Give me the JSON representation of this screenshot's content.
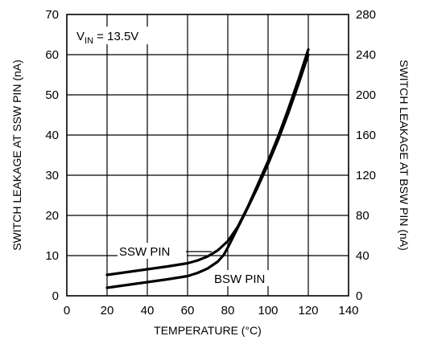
{
  "chart_data": {
    "type": "line",
    "xlabel": "TEMPERATURE (°C)",
    "ylabel_left": "SWITCH LEAKAGE AT SSW PIN (nA)",
    "ylabel_right": "SWITCH LEAKAGE AT BSW PIN (nA)",
    "xlim": [
      0,
      140
    ],
    "ylim_left": [
      0,
      70
    ],
    "ylim_right": [
      0,
      280
    ],
    "x_ticks": [
      "0",
      "20",
      "40",
      "60",
      "80",
      "100",
      "120",
      "140"
    ],
    "y_ticks_left": [
      "0",
      "10",
      "20",
      "30",
      "40",
      "50",
      "60",
      "70"
    ],
    "y_ticks_right": [
      "0",
      "40",
      "80",
      "120",
      "160",
      "200",
      "240",
      "280"
    ],
    "grid": true,
    "annotation": {
      "main": "V",
      "sub": "IN",
      "rest": " = 13.5V"
    },
    "series": [
      {
        "name": "SSW PIN",
        "axis": "left",
        "x": [
          20,
          30,
          40,
          50,
          60,
          65,
          70,
          75,
          80,
          85,
          90,
          95,
          100,
          105,
          110,
          115,
          120
        ],
        "y": [
          5.2,
          5.9,
          6.6,
          7.3,
          8.1,
          8.8,
          9.8,
          11.3,
          13.6,
          17.2,
          22.2,
          27.8,
          33.5,
          39.6,
          46.4,
          53.6,
          61.3
        ]
      },
      {
        "name": "BSW PIN",
        "axis": "right",
        "x": [
          20,
          30,
          40,
          50,
          60,
          65,
          70,
          75,
          78,
          80,
          85,
          90,
          95,
          100,
          105,
          110,
          115,
          120
        ],
        "y": [
          8.0,
          10.8,
          13.6,
          16.4,
          19.6,
          22.8,
          27.2,
          34.0,
          40.8,
          48.0,
          68.0,
          88.0,
          108.8,
          131.2,
          155.2,
          181.6,
          210.0,
          240.0
        ]
      }
    ]
  }
}
